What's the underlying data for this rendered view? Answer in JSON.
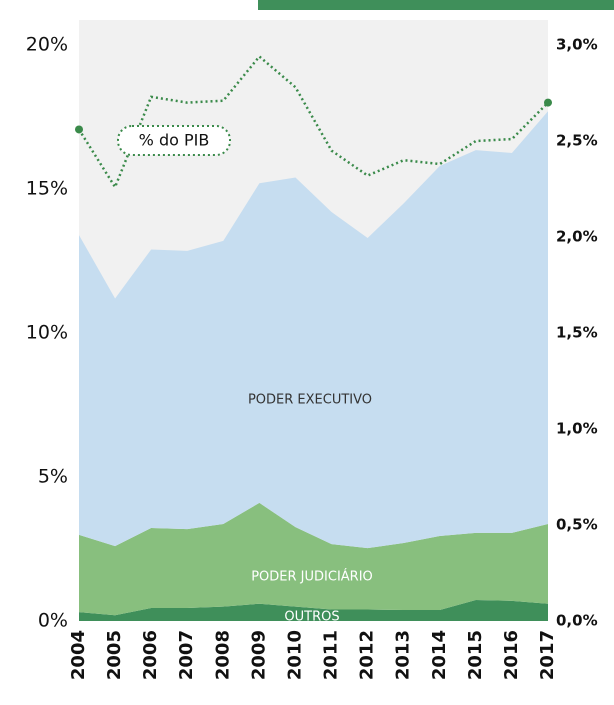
{
  "chart_data": {
    "type": "stacked-area",
    "categories": [
      "2004",
      "2005",
      "2006",
      "2007",
      "2008",
      "2009",
      "2010",
      "2011",
      "2012",
      "2013",
      "2014",
      "2015",
      "2016",
      "2017"
    ],
    "series": [
      {
        "name": "OUTROS",
        "color": "#3f8f5a",
        "values": [
          0.31,
          0.2,
          0.45,
          0.45,
          0.5,
          0.6,
          0.5,
          0.4,
          0.4,
          0.38,
          0.38,
          0.73,
          0.7,
          0.6
        ]
      },
      {
        "name": "PODER JUDICIÁRIO",
        "color": "#88bf7e",
        "values": [
          2.68,
          2.4,
          2.78,
          2.74,
          2.87,
          3.5,
          2.76,
          2.27,
          2.13,
          2.33,
          2.57,
          2.33,
          2.36,
          2.77
        ]
      },
      {
        "name": "PODER EXECUTIVO",
        "color": "#c6ddf0",
        "values": [
          10.41,
          8.6,
          9.67,
          9.66,
          9.83,
          11.1,
          12.14,
          11.53,
          10.77,
          11.79,
          12.85,
          13.29,
          13.19,
          14.33
        ]
      },
      {
        "name": "% do PIB",
        "color": "#3a8a4a",
        "axis": "y2",
        "values": [
          2.56,
          2.26,
          2.73,
          2.7,
          2.71,
          2.94,
          2.78,
          2.45,
          2.32,
          2.4,
          2.38,
          2.5,
          2.51,
          2.7
        ]
      }
    ],
    "ylim": [
      0,
      20
    ],
    "yticks": [
      {
        "value": 0,
        "label": "0%"
      },
      {
        "value": 5,
        "label": "5%"
      },
      {
        "value": 10,
        "label": "10%"
      },
      {
        "value": 15,
        "label": "15%"
      },
      {
        "value": 20,
        "label": "20%"
      }
    ],
    "y2lim": [
      0,
      3
    ],
    "y2ticks": [
      {
        "value": 0,
        "label": "0,0%"
      },
      {
        "value": 0.5,
        "label": "0,5%"
      },
      {
        "value": 1,
        "label": "1,0%"
      },
      {
        "value": 1.5,
        "label": "1,5%"
      },
      {
        "value": 2,
        "label": "2,0%"
      },
      {
        "value": 2.5,
        "label": "2,5%"
      },
      {
        "value": 3,
        "label": "3,0%"
      }
    ]
  }
}
